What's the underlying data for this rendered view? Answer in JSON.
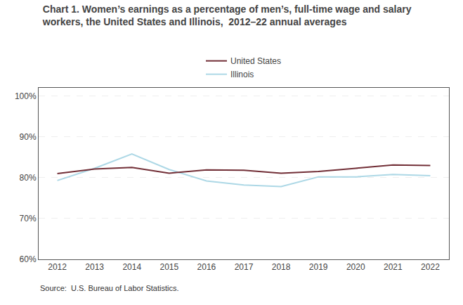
{
  "chart_data": {
    "type": "line",
    "title": "Chart 1. Women’s earnings as a percentage of men’s, full-time wage and salary\nworkers, the United States and Illinois,  2012–22 annual averages",
    "x": [
      2012,
      2013,
      2014,
      2015,
      2016,
      2017,
      2018,
      2019,
      2020,
      2021,
      2022
    ],
    "series": [
      {
        "name": "United States",
        "color": "#722F37",
        "values": [
          81.0,
          82.1,
          82.5,
          81.1,
          81.9,
          81.8,
          81.1,
          81.5,
          82.3,
          83.1,
          83.0
        ]
      },
      {
        "name": "Illinois",
        "color": "#ADD8E6",
        "values": [
          79.3,
          82.3,
          85.8,
          82.0,
          79.2,
          78.2,
          77.8,
          80.2,
          80.2,
          80.8,
          80.5
        ]
      }
    ],
    "xlim": [
      2011.5,
      2022.5
    ],
    "xticks": [
      2012,
      2013,
      2014,
      2015,
      2016,
      2017,
      2018,
      2019,
      2020,
      2021,
      2022
    ],
    "ylim": [
      60,
      102
    ],
    "yticks": [
      {
        "value": 60,
        "label": "60%"
      },
      {
        "value": 70,
        "label": "70%"
      },
      {
        "value": 80,
        "label": "80%"
      },
      {
        "value": 90,
        "label": "90%"
      },
      {
        "value": 100,
        "label": "100%"
      }
    ],
    "grid": true,
    "legend": "top",
    "annotations": [
      "Source:  U.S. Bureau of Labor Statistics."
    ]
  }
}
